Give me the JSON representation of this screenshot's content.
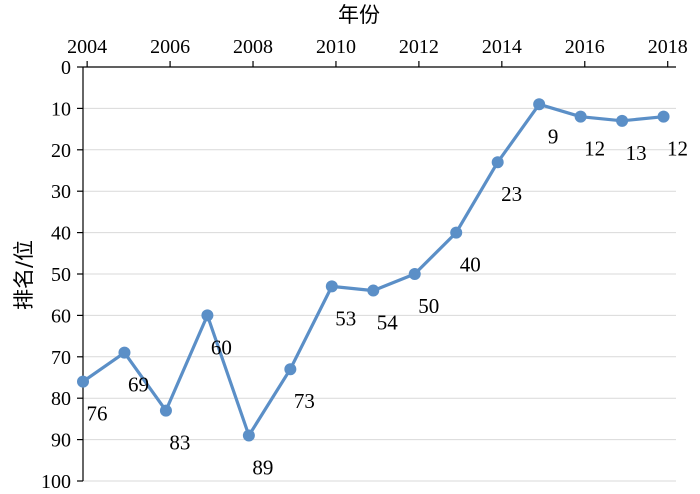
{
  "chart_data": {
    "type": "line",
    "xlabel": "年份",
    "ylabel": "排名/位",
    "x_axis_position": "top",
    "y_axis_reversed": true,
    "xlim": [
      2003.9,
      2018.2
    ],
    "ylim": [
      0,
      100
    ],
    "x_ticks": [
      2004,
      2006,
      2008,
      2010,
      2012,
      2014,
      2016,
      2018
    ],
    "y_ticks": [
      0,
      10,
      20,
      30,
      40,
      50,
      60,
      70,
      80,
      90,
      100
    ],
    "grid": "horizontal",
    "line_color": "#5b8fc7",
    "marker_color": "#5b8fc7",
    "series": [
      {
        "x": [
          2003.9,
          2004.9,
          2005.9,
          2006.9,
          2007.9,
          2008.9,
          2009.9,
          2010.9,
          2011.9,
          2012.9,
          2013.9,
          2014.9,
          2015.9,
          2016.9,
          2017.9
        ],
        "values": [
          76,
          69,
          83,
          60,
          89,
          73,
          53,
          54,
          50,
          40,
          23,
          9,
          12,
          13,
          12
        ]
      }
    ],
    "data_labels": [
      "76",
      "69",
      "83",
      "60",
      "89",
      "73",
      "53",
      "54",
      "50",
      "40",
      "23",
      "9",
      "12",
      "13",
      "12"
    ]
  }
}
